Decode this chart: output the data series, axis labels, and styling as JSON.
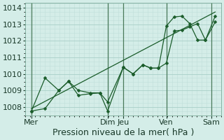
{
  "xlabel": "Pression niveau de la mer( hPa )",
  "bg_color": "#d4ede8",
  "grid_color_major": "#a8cfc7",
  "grid_color_minor": "#c0ddd8",
  "line_color": "#1a5c2a",
  "vline_color": "#4a7a5a",
  "ylim": [
    1007.5,
    1014.3
  ],
  "xlim": [
    0.0,
    1.0
  ],
  "yticks": [
    1008,
    1009,
    1010,
    1011,
    1012,
    1013,
    1014
  ],
  "xtick_labels": [
    "Mer",
    "Dim",
    "Jeu",
    "Ven",
    "Sam"
  ],
  "xtick_positions": [
    0.03,
    0.42,
    0.5,
    0.72,
    0.95
  ],
  "vline_positions": [
    0.03,
    0.42,
    0.5,
    0.72,
    0.95
  ],
  "trend_x": [
    0.03,
    0.97
  ],
  "trend_y": [
    1007.9,
    1013.75
  ],
  "line1_x": [
    0.03,
    0.1,
    0.17,
    0.22,
    0.27,
    0.33,
    0.38,
    0.42,
    0.5,
    0.55,
    0.6,
    0.64,
    0.68,
    0.72,
    0.76,
    0.8,
    0.84,
    0.88,
    0.92,
    0.97
  ],
  "line1_y": [
    1007.75,
    1007.9,
    1009.0,
    1009.55,
    1009.0,
    1008.85,
    1008.85,
    1008.3,
    1010.4,
    1010.0,
    1010.55,
    1010.35,
    1010.35,
    1010.65,
    1012.6,
    1012.65,
    1012.85,
    1013.05,
    1012.05,
    1013.15
  ],
  "line2_x": [
    0.03,
    0.1,
    0.17,
    0.22,
    0.27,
    0.33,
    0.38,
    0.42,
    0.5,
    0.55,
    0.6,
    0.64,
    0.68,
    0.72,
    0.76,
    0.8,
    0.84,
    0.88,
    0.92,
    0.97
  ],
  "line2_y": [
    1007.75,
    1009.75,
    1009.0,
    1009.55,
    1008.7,
    1008.8,
    1008.85,
    1007.75,
    1010.4,
    1010.0,
    1010.55,
    1010.35,
    1010.35,
    1012.9,
    1013.45,
    1013.5,
    1013.05,
    1012.05,
    1012.05,
    1013.5
  ],
  "marker": "D",
  "marker_size": 2.5,
  "fontsize": 8
}
